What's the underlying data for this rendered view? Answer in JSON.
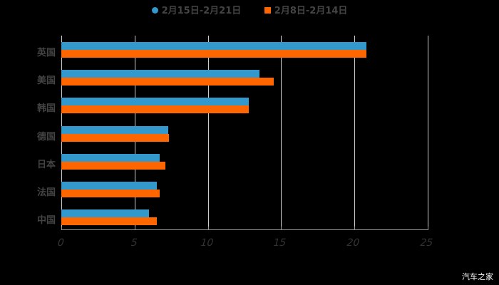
{
  "chart_data": {
    "type": "bar",
    "orientation": "horizontal",
    "title": "",
    "xlabel": "",
    "ylabel": "",
    "xlim": [
      0,
      25
    ],
    "xticks": [
      "0",
      "5",
      "10",
      "15",
      "20",
      "25"
    ],
    "grid": true,
    "legend_position": "top",
    "categories": [
      "英国",
      "美国",
      "韩国",
      "德国",
      "日本",
      "法国",
      "中国"
    ],
    "series": [
      {
        "name": "2月15日-2月21日",
        "color": "#3399CC",
        "values": [
          20.8,
          13.5,
          12.8,
          7.3,
          6.7,
          6.5,
          6.0
        ]
      },
      {
        "name": "2月8日-2月14日",
        "color": "#FF6600",
        "values": [
          20.8,
          14.5,
          12.8,
          7.35,
          7.1,
          6.7,
          6.5
        ]
      }
    ]
  },
  "legend": {
    "items": [
      {
        "label": "2月15日-2月21日",
        "color": "#3399CC",
        "shape": "circle"
      },
      {
        "label": "2月8日-2月14日",
        "color": "#FF6600",
        "shape": "square"
      }
    ]
  },
  "watermark": "汽车之家"
}
